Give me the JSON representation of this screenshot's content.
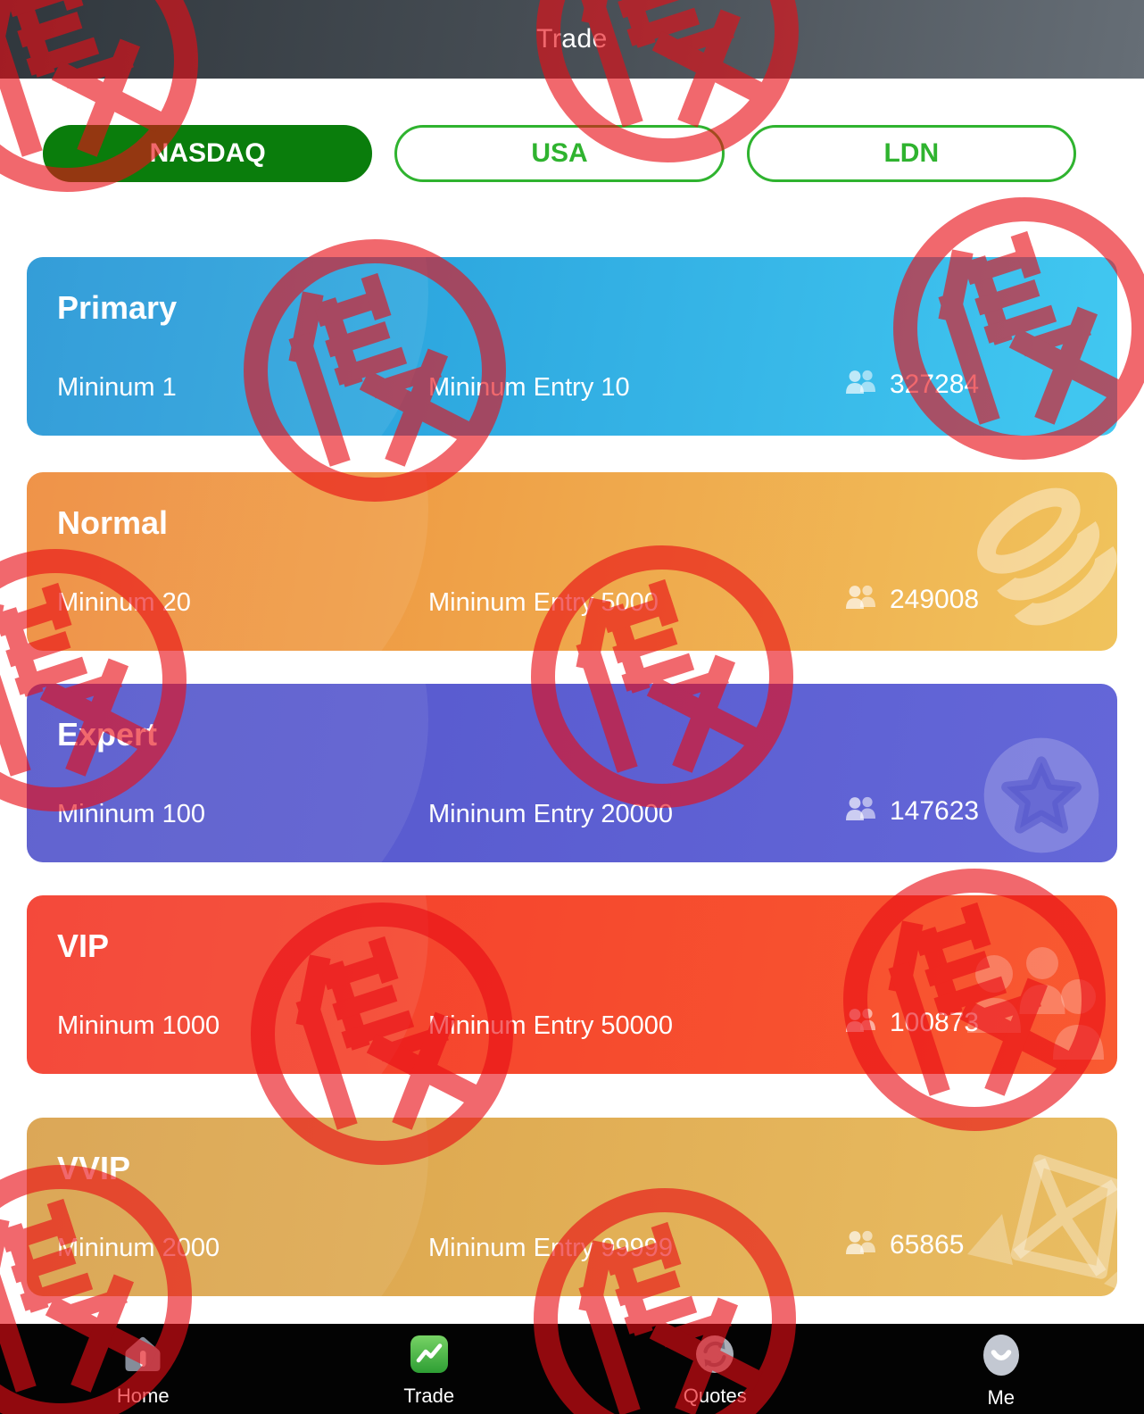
{
  "header": {
    "title": "Trade"
  },
  "market_tabs": [
    {
      "label": "NASDAQ",
      "active": true
    },
    {
      "label": "USA",
      "active": false
    },
    {
      "label": "LDN",
      "active": false
    }
  ],
  "tiers": [
    {
      "name": "Primary",
      "minimum": "Mininum 1",
      "minimum_entry": "Mininum Entry 10",
      "members": "327284",
      "color_start": "#2395d5",
      "color_end": "#41c8f1"
    },
    {
      "name": "Normal",
      "minimum": "Mininum 20",
      "minimum_entry": "Mininum Entry 5000",
      "members": "249008",
      "color_start": "#ee8a3a",
      "color_end": "#f0c35c"
    },
    {
      "name": "Expert",
      "minimum": "Mininum 100",
      "minimum_entry": "Mininum Entry 20000",
      "members": "147623",
      "color_start": "#5456cb",
      "color_end": "#6467d8"
    },
    {
      "name": "VIP",
      "minimum": "Mininum 1000",
      "minimum_entry": "Mininum Entry 50000",
      "members": "100873",
      "color_start": "#f33a2b",
      "color_end": "#f95a31"
    },
    {
      "name": "VVIP",
      "minimum": "Mininum 2000",
      "minimum_entry": "Mininum Entry 99999",
      "members": "65865",
      "color_start": "#d9a049",
      "color_end": "#e9bd62"
    }
  ],
  "bottom_nav": [
    {
      "label": "Home",
      "icon": "home-icon",
      "active": false
    },
    {
      "label": "Trade",
      "icon": "trade-icon",
      "active": true
    },
    {
      "label": "Quotes",
      "icon": "quotes-icon",
      "active": false
    },
    {
      "label": "Me",
      "icon": "me-icon",
      "active": false
    }
  ],
  "watermark": {
    "character": "假",
    "meaning": "fake-stamp",
    "color": "#e90d15",
    "count": 10
  }
}
